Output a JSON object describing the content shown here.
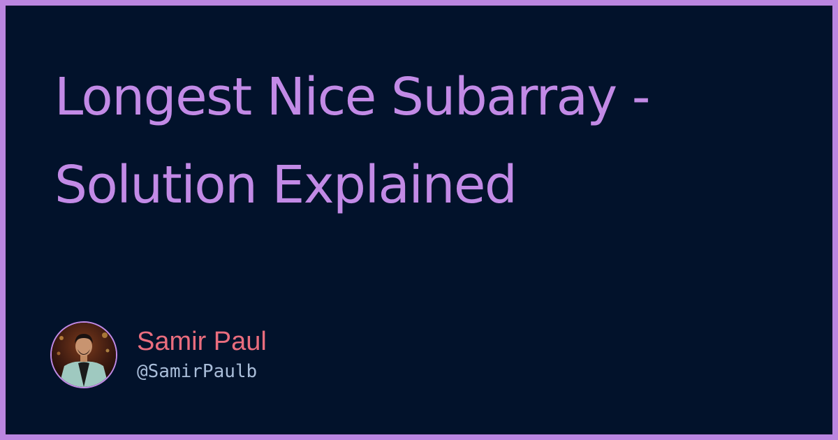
{
  "post": {
    "title": "Longest Nice Subarray - Solution Explained"
  },
  "author": {
    "name": "Samir Paul",
    "handle": "@SamirPaulb"
  },
  "colors": {
    "frame": "#bb86e0",
    "background": "#02122b",
    "title": "#c28ae6",
    "author_name": "#ea6d7e",
    "author_handle": "#a9bdd9"
  },
  "icons": {
    "avatar": "author-avatar-photo"
  }
}
